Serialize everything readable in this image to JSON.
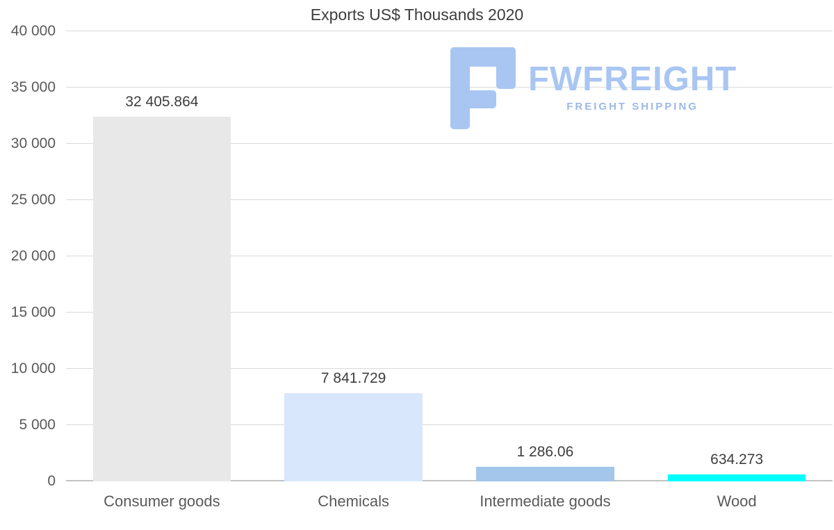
{
  "chart_data": {
    "type": "bar",
    "title": "Exports US$ Thousands 2020",
    "categories": [
      "Consumer goods",
      "Chemicals",
      "Intermediate goods",
      "Wood"
    ],
    "values": [
      32405.864,
      7841.729,
      1286.06,
      634.273
    ],
    "value_labels": [
      "32 405.864",
      "7 841.729",
      "1 286.06",
      "634.273"
    ],
    "bar_colors": [
      "#e8e8e8",
      "#d8e7fb",
      "#a3c6ea",
      "#00ffff"
    ],
    "xlabel": "",
    "ylabel": "",
    "ylim": [
      0,
      40000
    ],
    "ytick_interval": 5000,
    "ytick_labels": [
      "0",
      "5 000",
      "10 000",
      "15 000",
      "20 000",
      "25 000",
      "30 000",
      "35 000",
      "40 000"
    ],
    "grid": "horizontal",
    "legend": "none"
  },
  "watermark": {
    "brand": "FWFREIGHT",
    "tagline": "FREIGHT SHIPPING",
    "color": "#a9c6f2"
  }
}
